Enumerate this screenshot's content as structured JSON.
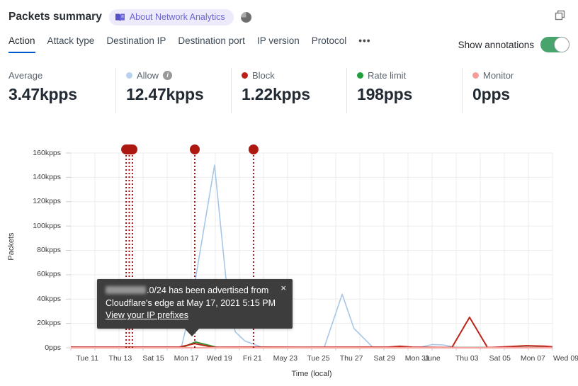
{
  "header": {
    "title": "Packets summary",
    "badge_label": "About Network Analytics"
  },
  "tabs": {
    "items": [
      {
        "label": "Action",
        "active": true
      },
      {
        "label": "Attack type",
        "active": false
      },
      {
        "label": "Destination IP",
        "active": false
      },
      {
        "label": "Destination port",
        "active": false
      },
      {
        "label": "IP version",
        "active": false
      },
      {
        "label": "Protocol",
        "active": false
      },
      {
        "label": "•••",
        "active": false
      }
    ]
  },
  "annotations_control": {
    "label": "Show annotations",
    "state": "on",
    "toggle_color": "#46a46c"
  },
  "stats": {
    "items": [
      {
        "label": "Average",
        "value": "3.47kpps",
        "dot_color": null
      },
      {
        "label": "Allow",
        "value": "12.47kpps",
        "dot_color": "#b6d2ee",
        "has_info_icon": true
      },
      {
        "label": "Block",
        "value": "1.22kpps",
        "dot_color": "#bd1e18"
      },
      {
        "label": "Rate limit",
        "value": "198pps",
        "dot_color": "#1fa03a"
      },
      {
        "label": "Monitor",
        "value": "0pps",
        "dot_color": "#f79c9b"
      }
    ]
  },
  "tooltip": {
    "line1_suffix": ".0/24 has been advertised from",
    "line2": "Cloudflare's edge at May 17, 2021 5:15 PM",
    "link_label": "View your IP prefixes",
    "close": "×"
  },
  "chart_data": {
    "type": "line",
    "title": "",
    "xlabel": "Time (local)",
    "ylabel": "Packets",
    "y_unit": "kpps",
    "x_unit_note": "day index: 0 = May 10 2021, ticks every 2 days",
    "ylim": [
      0,
      160
    ],
    "grid": true,
    "legend_position": "stats-row-above-chart",
    "y_ticks": [
      {
        "v": 0,
        "label": "0pps"
      },
      {
        "v": 20,
        "label": "20kpps"
      },
      {
        "v": 40,
        "label": "40kpps"
      },
      {
        "v": 60,
        "label": "60kpps"
      },
      {
        "v": 80,
        "label": "80kpps"
      },
      {
        "v": 100,
        "label": "100kpps"
      },
      {
        "v": 120,
        "label": "120kpps"
      },
      {
        "v": 140,
        "label": "140kpps"
      },
      {
        "v": 160,
        "label": "160kpps"
      }
    ],
    "x_ticks": [
      {
        "day": 1,
        "label": "Tue 11"
      },
      {
        "day": 3,
        "label": "Thu 13"
      },
      {
        "day": 5,
        "label": "Sat 15"
      },
      {
        "day": 7,
        "label": "Mon 17"
      },
      {
        "day": 9,
        "label": "Wed 19"
      },
      {
        "day": 11,
        "label": "Fri 21"
      },
      {
        "day": 13,
        "label": "May 23"
      },
      {
        "day": 15,
        "label": "Tue 25"
      },
      {
        "day": 17,
        "label": "Thu 27"
      },
      {
        "day": 19,
        "label": "Sat 29"
      },
      {
        "day": 21,
        "label": "Mon 31"
      },
      {
        "day": 21.9,
        "label": "June"
      },
      {
        "day": 24,
        "label": "Thu 03"
      },
      {
        "day": 26,
        "label": "Sat 05"
      },
      {
        "day": 28,
        "label": "Mon 07"
      },
      {
        "day": 30,
        "label": "Wed 09"
      }
    ],
    "series": [
      {
        "name": "Allow",
        "color": "#a7c7e7",
        "width": 1.6,
        "points": [
          [
            0,
            0.7
          ],
          [
            2.5,
            0.6
          ],
          [
            5,
            0.5
          ],
          [
            6.3,
            0.6
          ],
          [
            6.7,
            0.3
          ],
          [
            7.25,
            32
          ],
          [
            8.71,
            150
          ],
          [
            9.62,
            27
          ],
          [
            9.97,
            13
          ],
          [
            10.55,
            5.5
          ],
          [
            11.6,
            0.3
          ],
          [
            13,
            0.3
          ],
          [
            15.35,
            0.3
          ],
          [
            16.44,
            44
          ],
          [
            17.15,
            16
          ],
          [
            18.3,
            0.3
          ],
          [
            19.5,
            0.4
          ],
          [
            21.2,
            0.5
          ],
          [
            21.9,
            2.7
          ],
          [
            22.55,
            2.3
          ],
          [
            23.3,
            0.4
          ],
          [
            25,
            0.4
          ],
          [
            27,
            0.4
          ],
          [
            29.18,
            0.4
          ]
        ]
      },
      {
        "name": "Rate limit",
        "color": "#389133",
        "width": 2,
        "points": [
          [
            0,
            0.15
          ],
          [
            6.75,
            0.15
          ],
          [
            7.55,
            4.7
          ],
          [
            8.9,
            0.15
          ],
          [
            14,
            0.15
          ],
          [
            29.18,
            0.15
          ]
        ]
      },
      {
        "name": "Block",
        "color": "#bf2318",
        "width": 2,
        "points": [
          [
            0,
            0.5
          ],
          [
            3,
            0.5
          ],
          [
            6.55,
            0.5
          ],
          [
            7.5,
            3.4
          ],
          [
            8.65,
            0.4
          ],
          [
            11,
            0.5
          ],
          [
            14,
            0.4
          ],
          [
            19.2,
            0.5
          ],
          [
            19.95,
            1.2
          ],
          [
            20.7,
            0.5
          ],
          [
            22.8,
            0.25
          ],
          [
            23.1,
            0.4
          ],
          [
            24.16,
            25
          ],
          [
            25.25,
            0.15
          ],
          [
            26,
            0.6
          ],
          [
            27.6,
            1.7
          ],
          [
            28.7,
            1.3
          ],
          [
            29.18,
            0.8
          ]
        ]
      },
      {
        "name": "Monitor",
        "color": "#f5a29f",
        "width": 2.2,
        "points": [
          [
            0,
            0
          ],
          [
            29.18,
            0
          ]
        ]
      }
    ],
    "annotations": {
      "line_color": "#9c1512",
      "marker_color": "#ad1910",
      "events": [
        {
          "days": [
            3.35,
            3.54,
            3.73
          ]
        },
        {
          "days": [
            7.51
          ]
        },
        {
          "days": [
            11.07
          ]
        }
      ]
    }
  }
}
